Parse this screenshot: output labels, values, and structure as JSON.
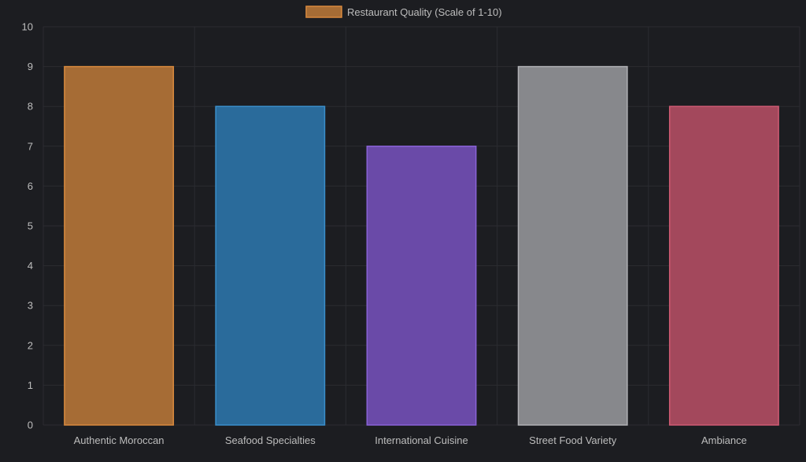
{
  "chart_data": {
    "type": "bar",
    "title": "",
    "xlabel": "",
    "ylabel": "",
    "categories": [
      "Authentic Moroccan",
      "Seafood Specialties",
      "International Cuisine",
      "Street Food Variety",
      "Ambiance"
    ],
    "series": [
      {
        "name": "Restaurant Quality (Scale of 1-10)",
        "values": [
          9,
          8,
          7,
          9,
          8
        ],
        "fill_colors": [
          "#a66c35",
          "#2a6b9b",
          "#6a4aa8",
          "#87888c",
          "#a3485c"
        ],
        "border_colors": [
          "#d98a3e",
          "#3a8fcc",
          "#8a63d8",
          "#b0b1b5",
          "#cf5a73"
        ]
      }
    ],
    "ylim": [
      0,
      10
    ],
    "yticks": [
      0,
      1,
      2,
      3,
      4,
      5,
      6,
      7,
      8,
      9,
      10
    ],
    "grid": true,
    "legend": {
      "position": "top-center",
      "label": "Restaurant Quality (Scale of 1-10)",
      "swatch_fill": "#a66c35",
      "swatch_border": "#d98a3e"
    },
    "colors": {
      "background": "#1c1d21",
      "grid": "#2b2c31",
      "tick_text": "#bdbdbd",
      "legend_text": "#bdbdbd"
    }
  }
}
